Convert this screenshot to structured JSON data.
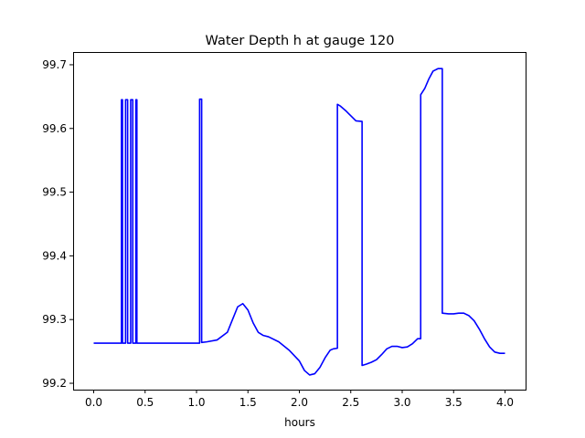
{
  "chart_data": {
    "type": "line",
    "title": "Water Depth h at gauge 120",
    "xlabel": "hours",
    "ylabel": "",
    "xlim": [
      -0.2,
      4.2
    ],
    "ylim": [
      99.19,
      99.72
    ],
    "xticks": [
      0.0,
      0.5,
      1.0,
      1.5,
      2.0,
      2.5,
      3.0,
      3.5,
      4.0
    ],
    "xtick_labels": [
      "0.0",
      "0.5",
      "1.0",
      "1.5",
      "2.0",
      "2.5",
      "3.0",
      "3.5",
      "4.0"
    ],
    "yticks": [
      99.2,
      99.3,
      99.4,
      99.5,
      99.6,
      99.7
    ],
    "ytick_labels": [
      "99.2",
      "99.3",
      "99.4",
      "99.5",
      "99.6",
      "99.7"
    ],
    "grid": false,
    "series": [
      {
        "color": "#0000ff",
        "x": [
          0.0,
          0.27,
          0.27,
          0.28,
          0.28,
          0.31,
          0.31,
          0.33,
          0.33,
          0.36,
          0.36,
          0.38,
          0.38,
          0.41,
          0.41,
          0.42,
          0.42,
          1.03,
          1.03,
          1.05,
          1.05,
          1.1,
          1.2,
          1.3,
          1.35,
          1.4,
          1.45,
          1.5,
          1.55,
          1.6,
          1.65,
          1.7,
          1.8,
          1.9,
          2.0,
          2.05,
          2.1,
          2.15,
          2.2,
          2.25,
          2.3,
          2.33,
          2.37,
          2.37,
          2.4,
          2.45,
          2.5,
          2.55,
          2.61,
          2.61,
          2.65,
          2.7,
          2.75,
          2.8,
          2.85,
          2.9,
          2.95,
          3.0,
          3.05,
          3.1,
          3.15,
          3.18,
          3.18,
          3.22,
          3.26,
          3.3,
          3.35,
          3.39,
          3.39,
          3.45,
          3.5,
          3.55,
          3.6,
          3.65,
          3.7,
          3.75,
          3.8,
          3.85,
          3.9,
          3.95,
          4.0
        ],
        "y": [
          99.263,
          99.263,
          99.645,
          99.645,
          99.263,
          99.263,
          99.645,
          99.645,
          99.263,
          99.263,
          99.645,
          99.645,
          99.263,
          99.263,
          99.645,
          99.645,
          99.263,
          99.263,
          99.646,
          99.646,
          99.264,
          99.265,
          99.268,
          99.28,
          99.3,
          99.32,
          99.325,
          99.315,
          99.295,
          99.28,
          99.275,
          99.273,
          99.265,
          99.252,
          99.235,
          99.22,
          99.213,
          99.215,
          99.225,
          99.24,
          99.252,
          99.254,
          99.255,
          99.638,
          99.635,
          99.628,
          99.62,
          99.612,
          99.611,
          99.228,
          99.23,
          99.233,
          99.237,
          99.245,
          99.254,
          99.258,
          99.258,
          99.256,
          99.257,
          99.262,
          99.27,
          99.27,
          99.653,
          99.663,
          99.678,
          99.69,
          99.694,
          99.694,
          99.31,
          99.309,
          99.309,
          99.31,
          99.31,
          99.306,
          99.298,
          99.285,
          99.27,
          99.257,
          99.249,
          99.247,
          99.247
        ]
      }
    ]
  }
}
